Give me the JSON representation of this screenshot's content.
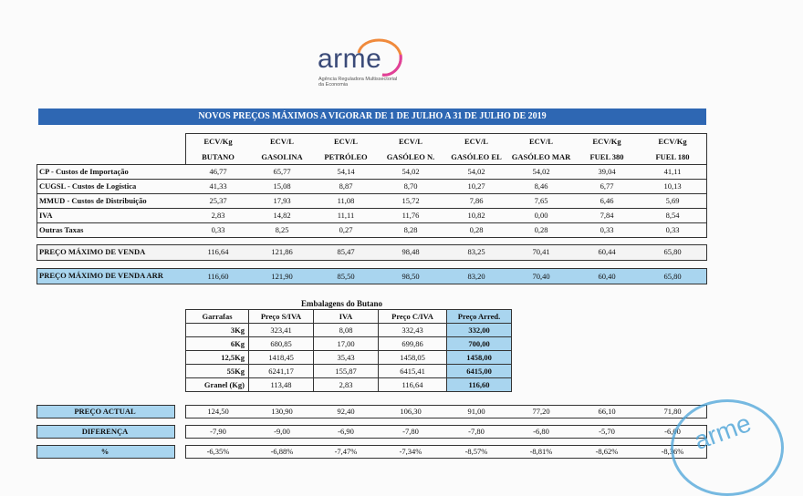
{
  "logo": {
    "word": "arme",
    "subtitle": "Agência Reguladora Multissectorial da Economia"
  },
  "title": "NOVOS PREÇOS MÁXIMOS A VIGORAR DE 1 DE JULHO A 31 DE JULHO DE 2019",
  "columns": [
    {
      "unit": "ECV/Kg",
      "name": "BUTANO"
    },
    {
      "unit": "ECV/L",
      "name": "GASOLINA"
    },
    {
      "unit": "ECV/L",
      "name": "PETRÓLEO"
    },
    {
      "unit": "ECV/L",
      "name": "GASÓLEO N."
    },
    {
      "unit": "ECV/L",
      "name": "GASÓLEO EL"
    },
    {
      "unit": "ECV/L",
      "name": "GASÓLEO MAR"
    },
    {
      "unit": "ECV/Kg",
      "name": "FUEL 380"
    },
    {
      "unit": "ECV/Kg",
      "name": "FUEL 180"
    }
  ],
  "rows": [
    {
      "label": "CP - Custos de Importação",
      "values": [
        "46,77",
        "65,77",
        "54,14",
        "54,02",
        "54,02",
        "54,02",
        "39,04",
        "41,11"
      ]
    },
    {
      "label": "CUGSL - Custos de Logística",
      "values": [
        "41,33",
        "15,08",
        "8,87",
        "8,70",
        "10,27",
        "8,46",
        "6,77",
        "10,13"
      ]
    },
    {
      "label": "MMUD - Custos de Distribuição",
      "values": [
        "25,37",
        "17,93",
        "11,08",
        "15,72",
        "7,86",
        "7,65",
        "6,46",
        "5,69"
      ]
    },
    {
      "label": "IVA",
      "values": [
        "2,83",
        "14,82",
        "11,11",
        "11,76",
        "10,82",
        "0,00",
        "7,84",
        "8,54"
      ]
    },
    {
      "label": "Outras Taxas",
      "values": [
        "0,33",
        "8,25",
        "0,27",
        "8,28",
        "0,28",
        "0,28",
        "0,33",
        "0,33"
      ]
    }
  ],
  "pmv": {
    "label": "PREÇO MÁXIMO DE VENDA",
    "values": [
      "116,64",
      "121,86",
      "85,47",
      "98,48",
      "83,25",
      "70,41",
      "60,44",
      "65,80"
    ]
  },
  "pmv_arr": {
    "label": "PREÇO MÁXIMO DE VENDA ARR",
    "values": [
      "116,60",
      "121,90",
      "85,50",
      "98,50",
      "83,20",
      "70,40",
      "60,40",
      "65,80"
    ]
  },
  "emb": {
    "title": "Embalagens do Butano",
    "headers": [
      "Garrafas",
      "Preço S/IVA",
      "IVA",
      "Preço C/IVA",
      "Preço Arred."
    ],
    "rows": [
      [
        "3Kg",
        "323,41",
        "8,08",
        "332,43",
        "332,00"
      ],
      [
        "6Kg",
        "680,85",
        "17,00",
        "699,86",
        "700,00"
      ],
      [
        "12,5Kg",
        "1418,45",
        "35,43",
        "1458,05",
        "1458,00"
      ],
      [
        "55Kg",
        "6241,17",
        "155,87",
        "6415,41",
        "6415,00"
      ],
      [
        "Granel (Kg)",
        "113,48",
        "2,83",
        "116,64",
        "116,60"
      ]
    ]
  },
  "actual": {
    "label": "PREÇO ACTUAL",
    "values": [
      "124,50",
      "130,90",
      "92,40",
      "106,30",
      "91,00",
      "77,20",
      "66,10",
      "71,80"
    ]
  },
  "diferenca": {
    "label": "DIFERENÇA",
    "values": [
      "-7,90",
      "-9,00",
      "-6,90",
      "-7,80",
      "-7,80",
      "-6,80",
      "-5,70",
      "-6,00"
    ]
  },
  "percent": {
    "label": "%",
    "values": [
      "-6,35%",
      "-6,88%",
      "-7,47%",
      "-7,34%",
      "-8,57%",
      "-8,81%",
      "-8,62%",
      "-8,36%"
    ]
  },
  "stamp": {
    "word": "arme"
  }
}
